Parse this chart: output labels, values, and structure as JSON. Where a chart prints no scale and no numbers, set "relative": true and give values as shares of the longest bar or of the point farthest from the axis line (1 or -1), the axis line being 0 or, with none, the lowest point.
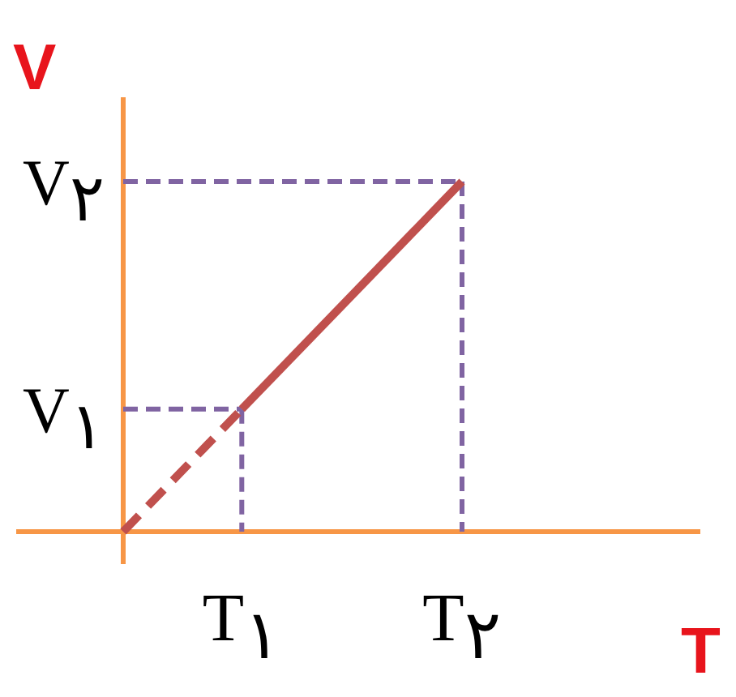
{
  "chart_data": {
    "type": "line",
    "relative": true,
    "xlabel": "T",
    "ylabel": "V",
    "categories": [
      null,
      null,
      null,
      null,
      null,
      null,
      null,
      "T$_{۱}$",
      null,
      null,
      null,
      null,
      null,
      null,
      null,
      null,
      null,
      null,
      null,
      null,
      "T$_{۲}$"
    ],
    "series": [
      {
        "color": "#c0504d",
        "values": [
          0,
          null,
          null,
          null,
          null,
          null,
          null,
          0.35,
          null,
          null,
          null,
          null,
          null,
          null,
          null,
          null,
          null,
          null,
          null,
          null,
          null
        ],
        "line_style": "dashed"
      },
      {
        "color": "#c0504d",
        "values": [
          null,
          null,
          null,
          null,
          null,
          null,
          null,
          0.35,
          null,
          null,
          null,
          null,
          null,
          null,
          null,
          null,
          null,
          null,
          null,
          null,
          1
        ],
        "line_style": "solid"
      }
    ],
    "annotations": [
      "V$_{۱}$",
      "V$_{۲}$"
    ],
    "marker": "none"
  }
}
